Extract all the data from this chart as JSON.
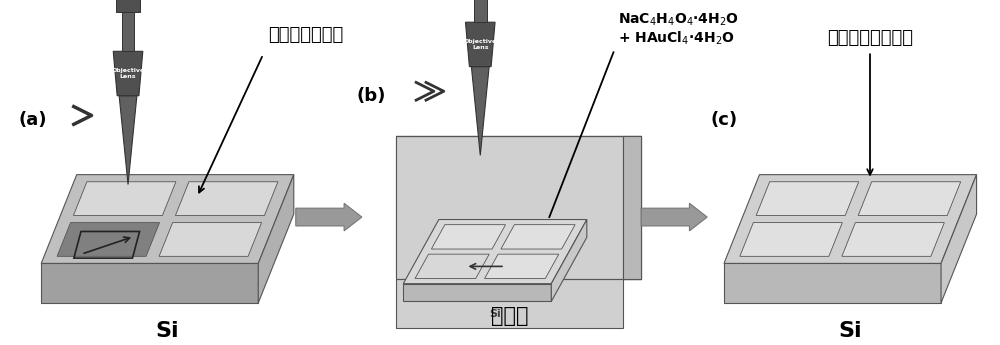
{
  "bg_color": "#ffffff",
  "font_chinese": "SimHei",
  "panel_a": {
    "label": "(a)",
    "annotation": "表面周期性结构",
    "si_label": "Si"
  },
  "panel_b": {
    "label": "(b)",
    "annotation_line1": "NaC$_4$H$_4$O$_4$·4H$_2$O",
    "annotation_line2": "+ HAuCl$_4$·4H$_2$O",
    "bottom_label": "光还原",
    "si_label": "Si"
  },
  "panel_c": {
    "label": "(c)",
    "annotation": "形貌可控的金颗粒",
    "si_label": "Si"
  },
  "colors": {
    "plate_top": "#c0c0c0",
    "plate_front": "#a0a0a0",
    "plate_right": "#b0b0b0",
    "plate_top_light": "#d0d0d0",
    "plate_front_light": "#b8b8b8",
    "plate_right_light": "#c8c8c8",
    "sq_dark": "#808080",
    "sq_light": "#d8d8d8",
    "sq_lighter": "#e0e0e0",
    "box_inner": "#e8e8e8",
    "box_left_wall": "#d0d0d0",
    "box_front_wall": "#c0c0c0",
    "box_right_wall": "#b0b0b0",
    "box_top_rim": "#e0e0e0",
    "lens_body": "#555555",
    "lens_dark": "#444444",
    "lens_mid": "#666666",
    "arrow_gray": "#909090",
    "black": "#000000",
    "white": "#ffffff"
  }
}
